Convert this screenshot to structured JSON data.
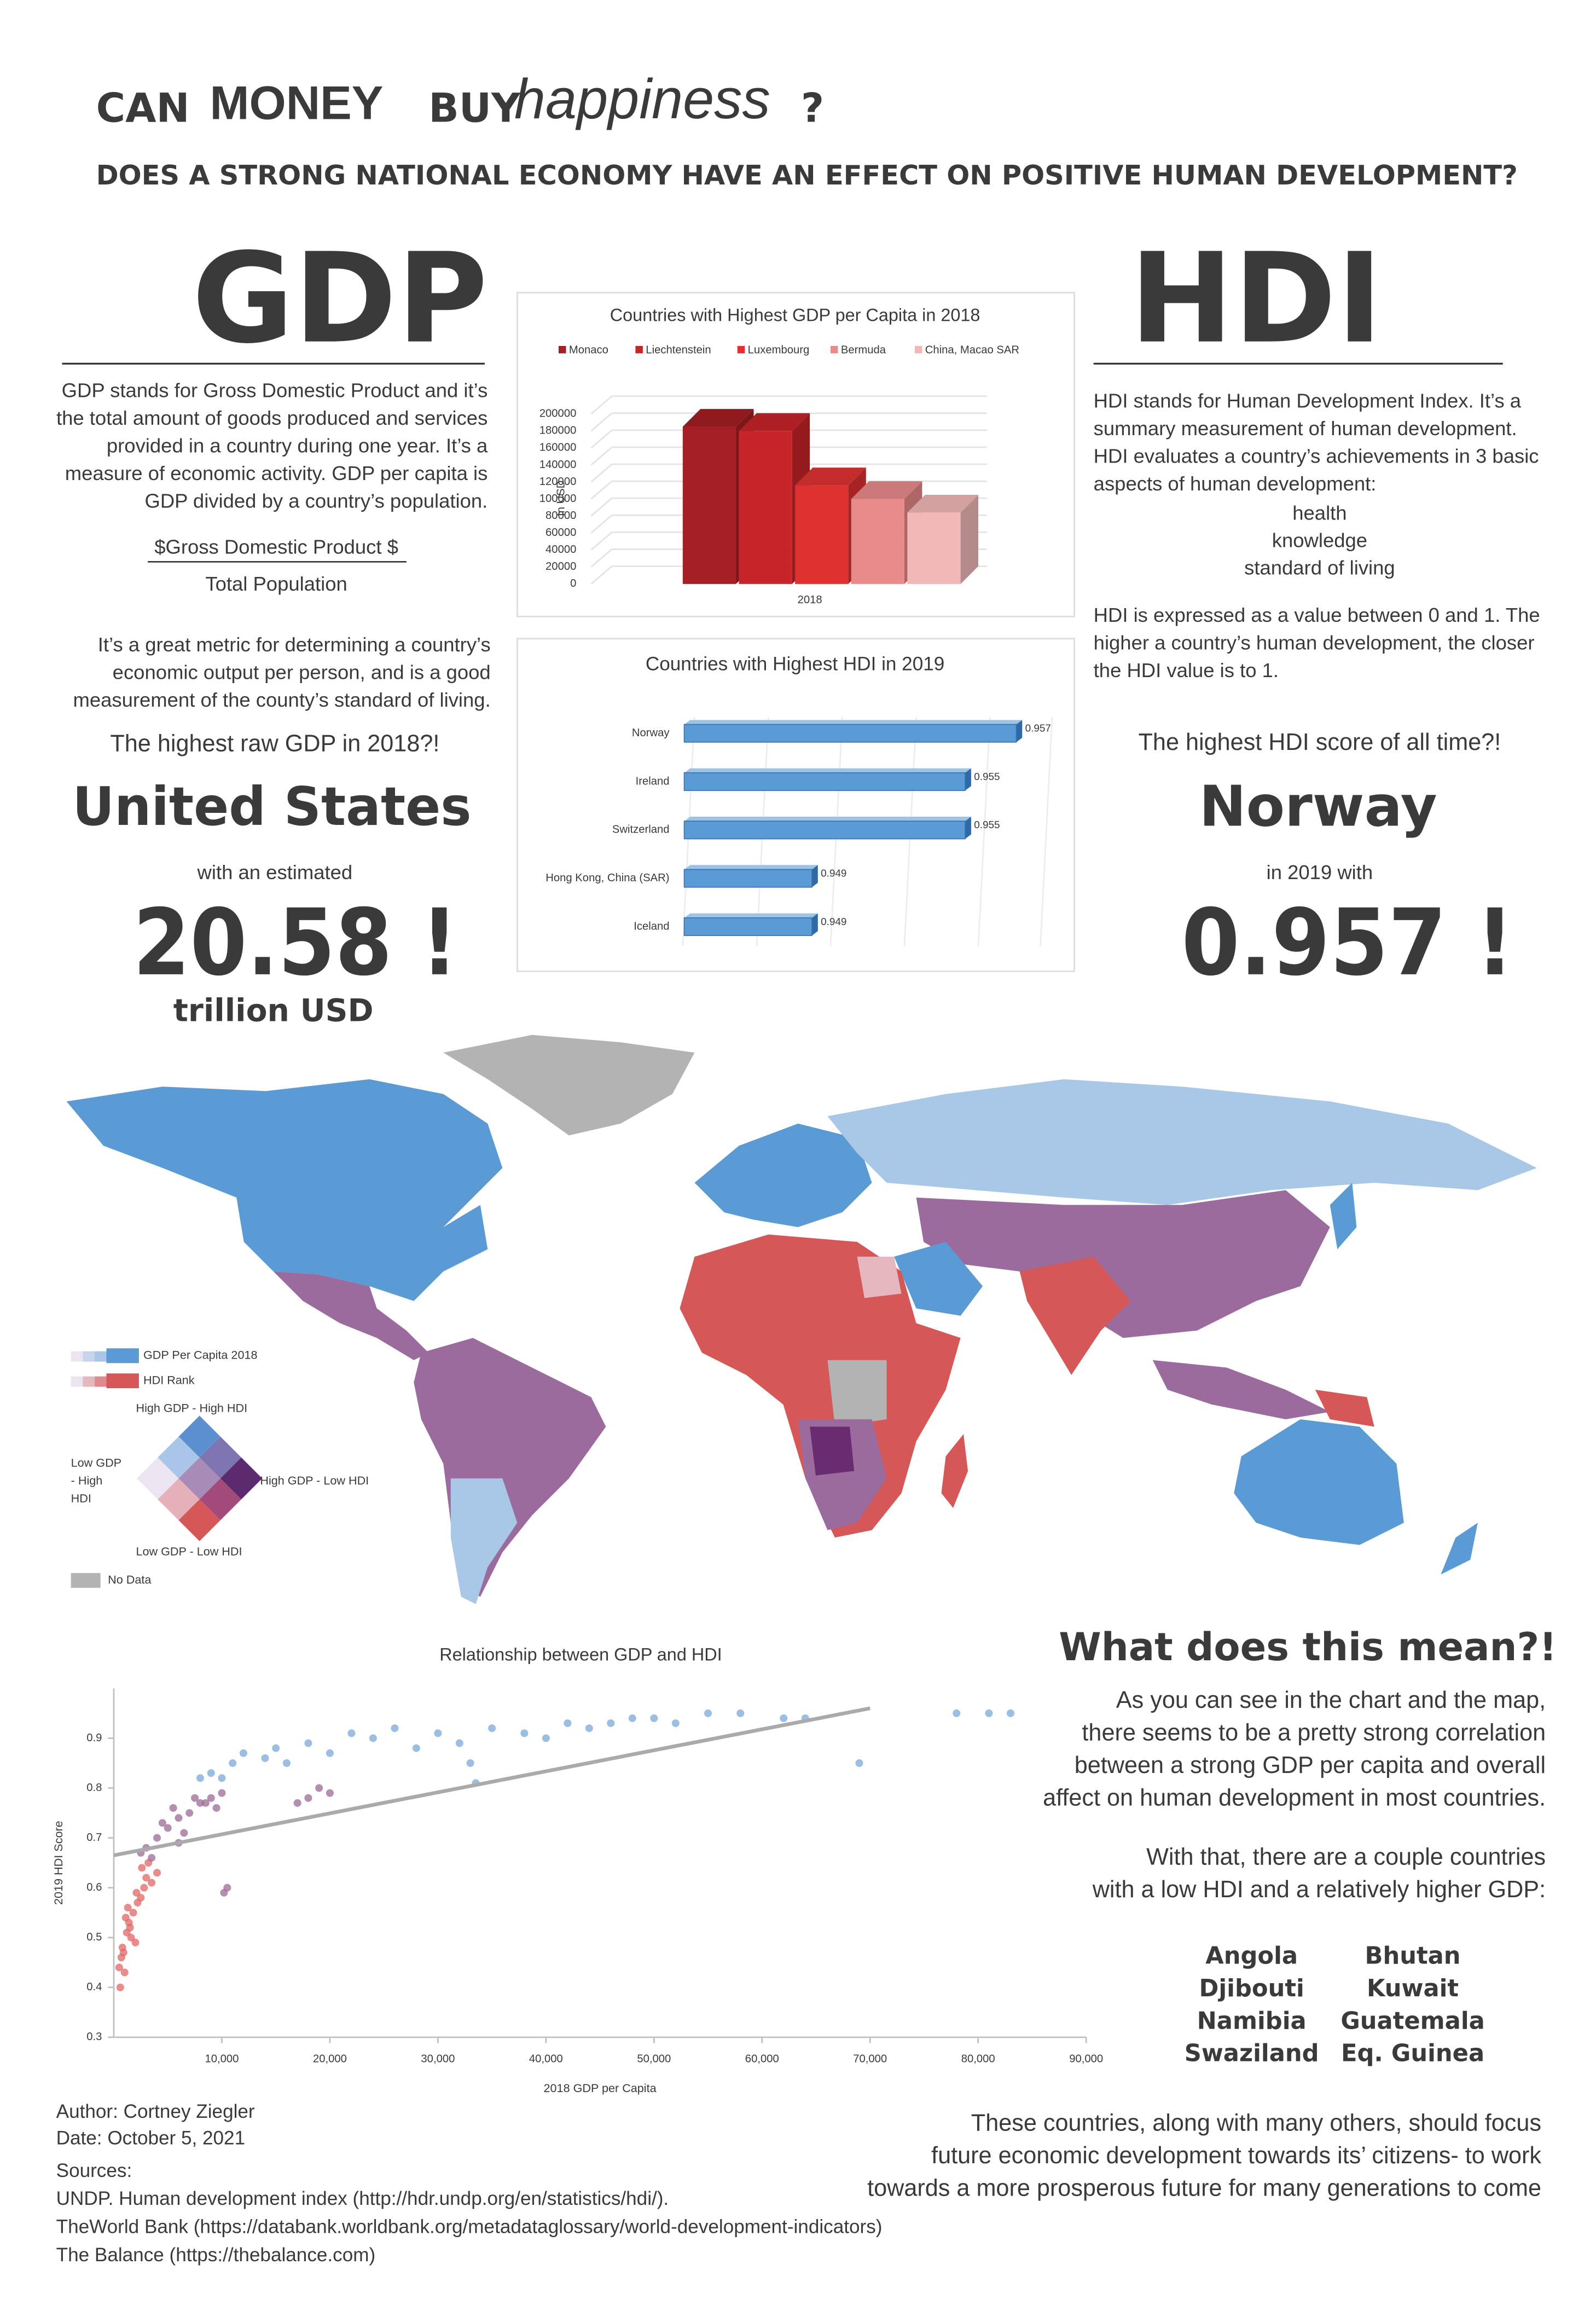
{
  "header": {
    "title": [
      "CAN",
      "MONEY",
      "BUY",
      "happiness",
      "?"
    ],
    "subtitle": "DOES A STRONG NATIONAL ECONOMY HAVE AN EFFECT ON POSITIVE HUMAN DEVELOPMENT?"
  },
  "gdp": {
    "heading": "GDP",
    "description": [
      "GDP stands for Gross Domestic Product and it’s",
      "the total amount of goods produced and services",
      "provided in a country during one year. It’s a",
      "measure of economic activity. GDP per capita is",
      "GDP divided by a country’s population."
    ],
    "formula": [
      "$Gross Domestic Product $",
      "Total Population"
    ],
    "metric": [
      "It’s a great metric for determining a country’s",
      "economic output per person, and is a good",
      "measurement of the county’s standard of living."
    ],
    "question": "The highest raw GDP in 2018?!",
    "country": "United States",
    "lead": "with an estimated",
    "value": "20.58 !",
    "unit": "trillion USD"
  },
  "hdi": {
    "heading": "HDI",
    "description": [
      "HDI stands for Human Development Index. It’s a",
      "summary measurement of human development.",
      "HDI evaluates a country’s achievements in 3 basic",
      "aspects of human development:"
    ],
    "aspects": [
      "health",
      "knowledge",
      "standard of living"
    ],
    "scale": [
      "HDI is expressed as a value between 0 and 1. The",
      "higher a country’s human development, the closer",
      "the HDI value is to 1."
    ],
    "question": "The highest HDI score of all time?!",
    "country": "Norway",
    "lead": "in 2019 with",
    "value": "0.957 !"
  },
  "chart_data": [
    {
      "type": "bar",
      "title": "Countries with Highest GDP per Capita in 2018",
      "y_label": "In USD",
      "categories": [
        "2018"
      ],
      "series": [
        {
          "name": "Monaco",
          "color": "#a31f24",
          "values": [
            185000
          ]
        },
        {
          "name": "Liechtenstein",
          "color": "#c8252a",
          "values": [
            180000
          ]
        },
        {
          "name": "Luxembourg",
          "color": "#e03131",
          "values": [
            116000
          ]
        },
        {
          "name": "Bermuda",
          "color": "#e98a8a",
          "values": [
            100000
          ]
        },
        {
          "name": "China, Macao SAR",
          "color": "#f2b8b8",
          "values": [
            84000
          ]
        }
      ],
      "ylim": [
        0,
        200000
      ],
      "yticks": [
        0,
        20000,
        40000,
        60000,
        80000,
        100000,
        120000,
        140000,
        160000,
        180000,
        200000
      ],
      "grid": true
    },
    {
      "type": "bar",
      "orientation": "horizontal",
      "title": "Countries with Highest HDI in 2019",
      "categories": [
        "Norway",
        "Ireland",
        "Switzerland",
        "Hong Kong, China (SAR)",
        "Iceland"
      ],
      "values": [
        0.957,
        0.955,
        0.955,
        0.949,
        0.949
      ],
      "color": "#5b9bd5",
      "xlim": [
        0.944,
        0.958
      ]
    },
    {
      "type": "scatter",
      "title": "Relationship between GDP and HDI",
      "x_label": "2018 GDP per Capita",
      "y_label": "2019 HDI Score",
      "x": [
        500,
        700,
        800,
        1000,
        1200,
        1500,
        1800,
        2000,
        2200,
        2500,
        2800,
        3000,
        3500,
        4000,
        1100,
        1600,
        2100,
        900,
        1300,
        2600,
        3200,
        600,
        1400,
        3000,
        4000,
        5000,
        6000,
        7000,
        8000,
        9000,
        10000,
        4500,
        5500,
        6500,
        7500,
        8500,
        9500,
        3500,
        2500,
        6000,
        10500,
        18000,
        19000,
        20000,
        17000,
        10200,
        8000,
        9000,
        10000,
        11000,
        12000,
        14000,
        15000,
        16000,
        18000,
        20000,
        22000,
        24000,
        26000,
        28000,
        30000,
        32000,
        33000,
        35000,
        38000,
        40000,
        42000,
        44000,
        46000,
        48000,
        50000,
        52000,
        55000,
        58000,
        62000,
        64000,
        69000,
        78000,
        81000,
        83000,
        33500
      ],
      "y": [
        0.44,
        0.46,
        0.48,
        0.43,
        0.51,
        0.52,
        0.55,
        0.49,
        0.57,
        0.58,
        0.6,
        0.62,
        0.61,
        0.63,
        0.54,
        0.5,
        0.59,
        0.47,
        0.56,
        0.64,
        0.65,
        0.4,
        0.53,
        0.68,
        0.7,
        0.72,
        0.74,
        0.75,
        0.77,
        0.78,
        0.79,
        0.73,
        0.76,
        0.71,
        0.78,
        0.77,
        0.76,
        0.66,
        0.67,
        0.69,
        0.6,
        0.78,
        0.8,
        0.79,
        0.77,
        0.59,
        0.82,
        0.83,
        0.82,
        0.85,
        0.87,
        0.86,
        0.88,
        0.85,
        0.89,
        0.87,
        0.91,
        0.9,
        0.92,
        0.88,
        0.91,
        0.89,
        0.85,
        0.92,
        0.91,
        0.9,
        0.93,
        0.92,
        0.93,
        0.94,
        0.94,
        0.93,
        0.95,
        0.95,
        0.94,
        0.94,
        0.85,
        0.95,
        0.95,
        0.95,
        0.81
      ],
      "colors": [
        "#e06666",
        "#e06666",
        "#e06666",
        "#e06666",
        "#e06666",
        "#e06666",
        "#e06666",
        "#e06666",
        "#e06666",
        "#e06666",
        "#e06666",
        "#e06666",
        "#e06666",
        "#e06666",
        "#e06666",
        "#e06666",
        "#e06666",
        "#e06666",
        "#e06666",
        "#e06666",
        "#e06666",
        "#e06666",
        "#e06666",
        "#9b6a96",
        "#9b6a96",
        "#9b6a96",
        "#9b6a96",
        "#9b6a96",
        "#9b6a96",
        "#9b6a96",
        "#9b6a96",
        "#9b6a96",
        "#9b6a96",
        "#9b6a96",
        "#9b6a96",
        "#9b6a96",
        "#9b6a96",
        "#9b6a96",
        "#9b6a96",
        "#9b6a96",
        "#9b6a96",
        "#9b6a96",
        "#9b6a96",
        "#9b6a96",
        "#9b6a96",
        "#9b6a96",
        "#7aa8d8",
        "#7aa8d8",
        "#7aa8d8",
        "#7aa8d8",
        "#7aa8d8",
        "#7aa8d8",
        "#7aa8d8",
        "#7aa8d8",
        "#7aa8d8",
        "#7aa8d8",
        "#7aa8d8",
        "#7aa8d8",
        "#7aa8d8",
        "#7aa8d8",
        "#7aa8d8",
        "#7aa8d8",
        "#7aa8d8",
        "#7aa8d8",
        "#7aa8d8",
        "#7aa8d8",
        "#7aa8d8",
        "#7aa8d8",
        "#7aa8d8",
        "#7aa8d8",
        "#7aa8d8",
        "#7aa8d8",
        "#7aa8d8",
        "#7aa8d8",
        "#7aa8d8",
        "#7aa8d8",
        "#7aa8d8",
        "#7aa8d8",
        "#7aa8d8",
        "#7aa8d8",
        "#7aa8d8"
      ],
      "trendline": {
        "x": [
          0,
          70000
        ],
        "y": [
          0.665,
          0.96
        ],
        "color": "#aaaaaa"
      },
      "xlim": [
        0,
        90000
      ],
      "xticks": [
        {
          "value": 10000,
          "label": "10,000"
        },
        {
          "value": 20000,
          "label": "20,000"
        },
        {
          "value": 30000,
          "label": "30,000"
        },
        {
          "value": 40000,
          "label": "40,000"
        },
        {
          "value": 50000,
          "label": "50,000"
        },
        {
          "value": 60000,
          "label": "60,000"
        },
        {
          "value": 70000,
          "label": "70,000"
        },
        {
          "value": 80000,
          "label": "80,000"
        },
        {
          "value": 90000,
          "label": "90,000"
        }
      ],
      "ylim": [
        0.3,
        1.0
      ],
      "yticks": [
        0.3,
        0.4,
        0.5,
        0.6,
        0.7,
        0.8,
        0.9
      ]
    }
  ],
  "map": {
    "legend": {
      "gdp": "GDP Per Capita 2018",
      "hdi": "HDI Rank",
      "top": "High GDP - High HDI",
      "left": [
        "Low GDP",
        "- High",
        "HDI"
      ],
      "right": "High GDP - Low HDI",
      "bottom": "Low GDP - Low HDI",
      "no_data": "No Data"
    }
  },
  "conclusion": {
    "heading": "What does this mean?!",
    "paragraph": [
      "As you can see in the chart and the map,",
      "there seems to be a pretty strong correlation",
      "between a strong GDP per capita and overall",
      "affect on human development in most countries."
    ],
    "exception": [
      "With that, there are a couple countries",
      "with a low HDI and a relatively higher GDP:"
    ],
    "countries": [
      [
        "Angola",
        "Djibouti",
        "Namibia",
        "Swaziland"
      ],
      [
        "Bhutan",
        "Kuwait",
        "Guatemala",
        "Eq. Guinea"
      ]
    ],
    "closing": [
      "These countries, along with many others, should focus",
      "future economic development towards its’ citizens- to work",
      "towards a more prosperous future for many generations to come"
    ]
  },
  "footer": {
    "author": "Author: Cortney Ziegler",
    "date": "Date: October 5, 2021",
    "sources_label": "Sources:",
    "sources": [
      "UNDP. Human development index (http://hdr.undp.org/en/statistics/hdi/).",
      "TheWorld Bank (https://databank.worldbank.org/metadataglossary/world-development-indicators)",
      "The Balance (https://thebalance.com)"
    ]
  }
}
